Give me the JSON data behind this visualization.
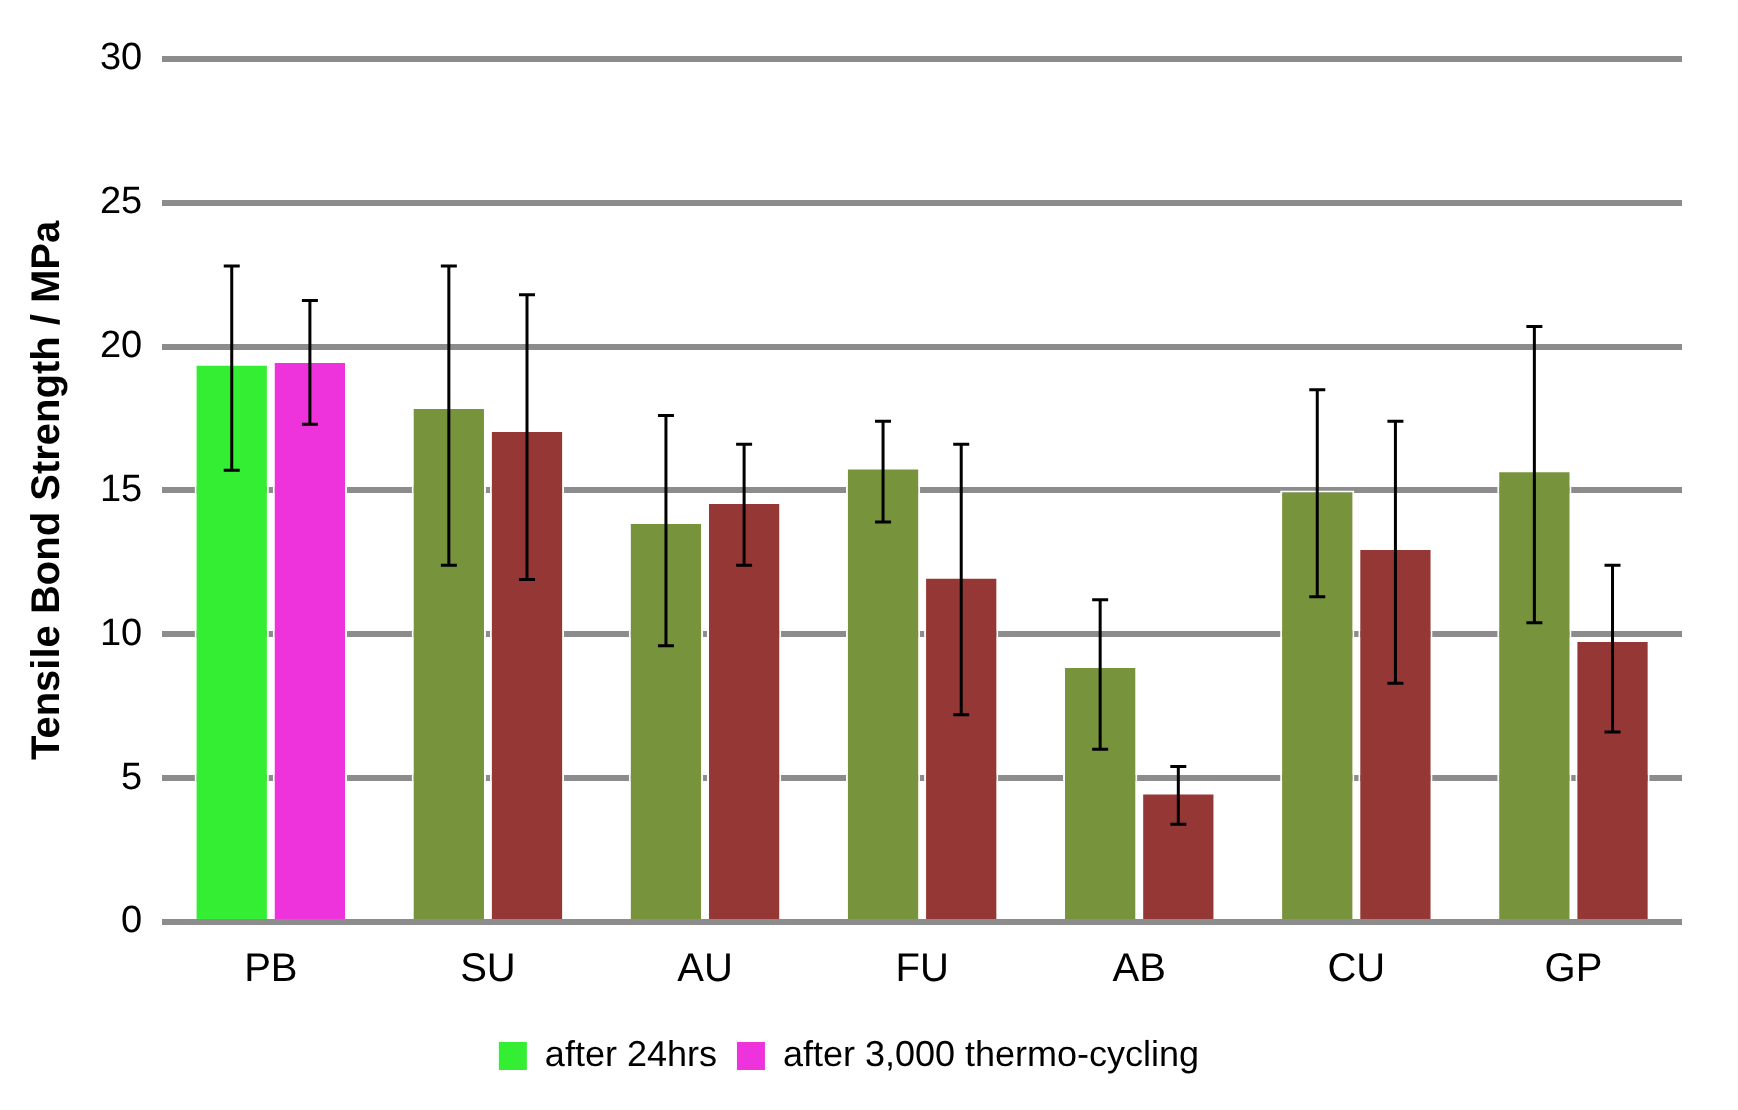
{
  "chart_data": {
    "type": "bar",
    "ylabel": "Tensile Bond Strength / MPa",
    "categories": [
      "PB",
      "SU",
      "AU",
      "FU",
      "AB",
      "CU",
      "GP"
    ],
    "series": [
      {
        "name": "after 24hrs",
        "color": "#33ee33",
        "colors": [
          "#33ee33",
          "#77933c",
          "#77933c",
          "#77933c",
          "#77933c",
          "#77933c",
          "#77933c"
        ],
        "values": [
          19.4,
          17.9,
          13.9,
          15.8,
          8.9,
          15.0,
          15.7
        ],
        "errors": [
          [
            15.7,
            22.8
          ],
          [
            12.4,
            22.8
          ],
          [
            9.6,
            17.6
          ],
          [
            13.9,
            17.4
          ],
          [
            6.0,
            11.2
          ],
          [
            11.3,
            18.5
          ],
          [
            10.4,
            20.7
          ]
        ]
      },
      {
        "name": "after 3,000 thermo-cycling",
        "color": "#ee33dd",
        "colors": [
          "#ee33dd",
          "#953735",
          "#953735",
          "#953735",
          "#953735",
          "#953735",
          "#953735"
        ],
        "values": [
          19.5,
          17.1,
          14.6,
          12.0,
          4.5,
          13.0,
          9.8
        ],
        "errors": [
          [
            17.3,
            21.6
          ],
          [
            11.9,
            21.8
          ],
          [
            12.4,
            16.6
          ],
          [
            7.2,
            16.6
          ],
          [
            3.4,
            5.4
          ],
          [
            8.3,
            17.4
          ],
          [
            6.6,
            12.4
          ]
        ]
      }
    ],
    "ylim": [
      0,
      30
    ],
    "yticks": [
      0,
      5,
      10,
      15,
      20,
      25,
      30
    ],
    "grid": "y",
    "legend": "bottom"
  }
}
